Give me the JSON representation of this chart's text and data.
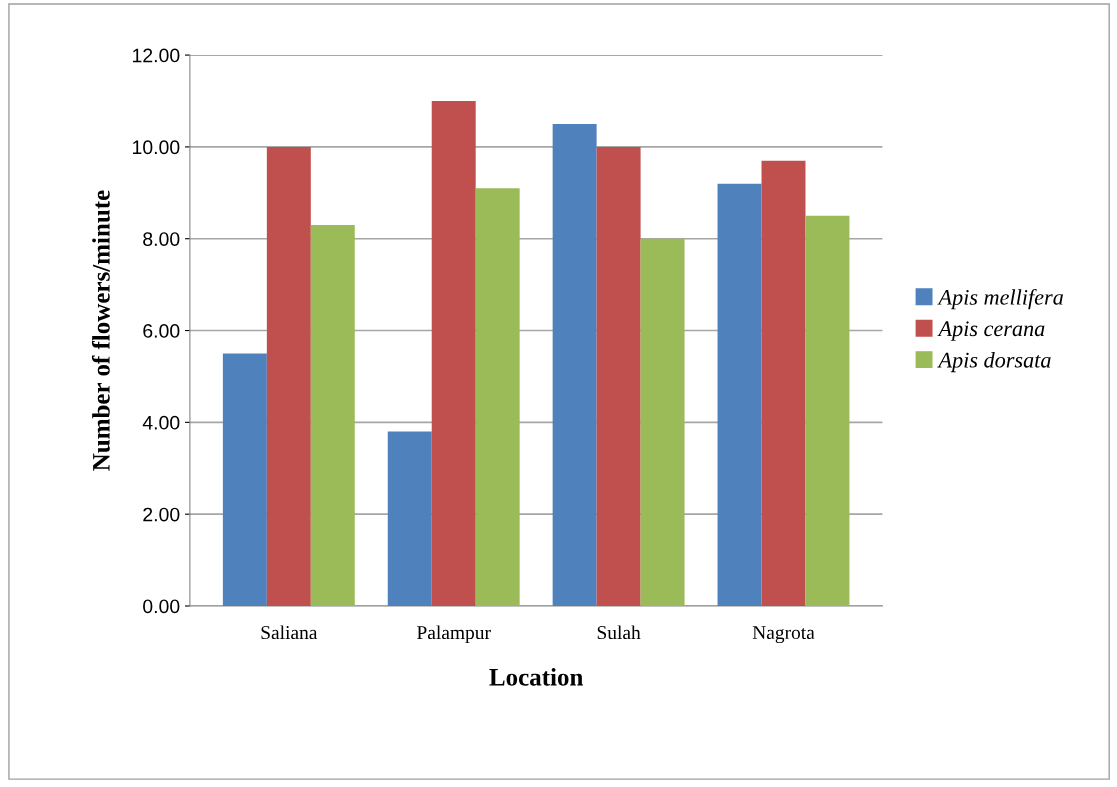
{
  "chart_data": {
    "type": "bar",
    "xlabel": "Location",
    "ylabel": "Number of flowers/minute",
    "categories": [
      "Saliana",
      "Palampur",
      "Sulah",
      "Nagrota"
    ],
    "series": [
      {
        "name": "Apis mellifera",
        "color": "#4f81bd",
        "values": [
          5.5,
          3.8,
          10.5,
          9.2
        ]
      },
      {
        "name": "Apis cerana",
        "color": "#c0504d",
        "values": [
          10.0,
          11.0,
          10.0,
          9.7
        ]
      },
      {
        "name": "Apis dorsata",
        "color": "#9bbb59",
        "values": [
          8.3,
          9.1,
          8.0,
          8.5
        ]
      }
    ],
    "ylim": [
      0,
      12
    ],
    "yticks": [
      {
        "value": 0,
        "label": "0.00"
      },
      {
        "value": 2,
        "label": "2.00"
      },
      {
        "value": 4,
        "label": "4.00"
      },
      {
        "value": 6,
        "label": "6.00"
      },
      {
        "value": 8,
        "label": "8.00"
      },
      {
        "value": 10,
        "label": "10.00"
      },
      {
        "value": 12,
        "label": "12.00"
      }
    ],
    "grid": "y",
    "legend": "right"
  }
}
